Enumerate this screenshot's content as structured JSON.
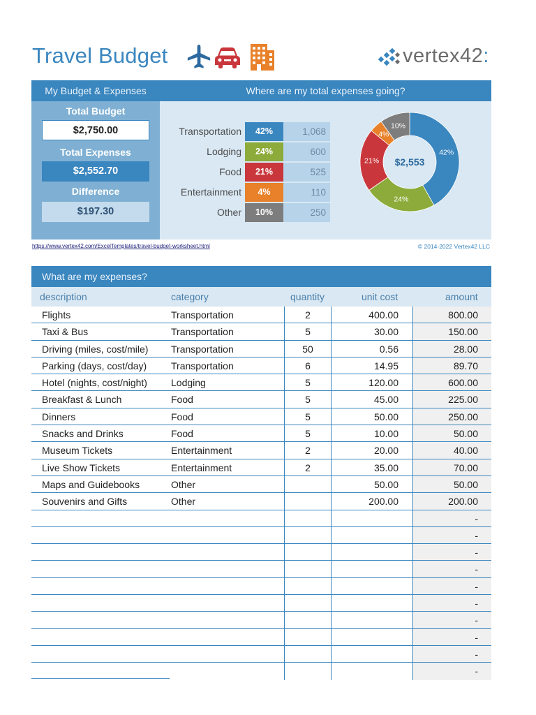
{
  "title": "Travel Budget",
  "icons": [
    "plane-icon",
    "car-icon",
    "hotel-icon"
  ],
  "logo": {
    "text": "vertex42",
    "colon": ":"
  },
  "summary": {
    "header": "My Budget & Expenses",
    "total_budget_label": "Total Budget",
    "total_budget": "$2,750.00",
    "total_expenses_label": "Total Expenses",
    "total_expenses": "$2,552.70",
    "difference_label": "Difference",
    "difference": "$197.30"
  },
  "breakdown": {
    "header": "Where are my total expenses going?",
    "categories": [
      {
        "name": "Transportation",
        "pct": "42%",
        "value": "1,068",
        "color": "#3a86bf"
      },
      {
        "name": "Lodging",
        "pct": "24%",
        "value": "600",
        "color": "#8cab3a"
      },
      {
        "name": "Food",
        "pct": "21%",
        "value": "525",
        "color": "#c9373c"
      },
      {
        "name": "Entertainment",
        "pct": "4%",
        "value": "110",
        "color": "#e8812a"
      },
      {
        "name": "Other",
        "pct": "10%",
        "value": "250",
        "color": "#7d7d7d"
      }
    ],
    "donut_center": "$2,553"
  },
  "link": "https://www.vertex42.com/ExcelTemplates/travel-budget-worksheet.html",
  "copyright": "© 2014-2022 Vertex42 LLC",
  "expenses": {
    "header": "What are my expenses?",
    "columns": {
      "description": "description",
      "category": "category",
      "quantity": "quantity",
      "unit_cost": "unit cost",
      "amount": "amount"
    },
    "rows": [
      {
        "description": "Flights",
        "category": "Transportation",
        "quantity": "2",
        "unit_cost": "400.00",
        "amount": "800.00"
      },
      {
        "description": "Taxi & Bus",
        "category": "Transportation",
        "quantity": "5",
        "unit_cost": "30.00",
        "amount": "150.00"
      },
      {
        "description": "Driving (miles, cost/mile)",
        "category": "Transportation",
        "quantity": "50",
        "unit_cost": "0.56",
        "amount": "28.00"
      },
      {
        "description": "Parking (days, cost/day)",
        "category": "Transportation",
        "quantity": "6",
        "unit_cost": "14.95",
        "amount": "89.70"
      },
      {
        "description": "Hotel (nights, cost/night)",
        "category": "Lodging",
        "quantity": "5",
        "unit_cost": "120.00",
        "amount": "600.00"
      },
      {
        "description": "Breakfast & Lunch",
        "category": "Food",
        "quantity": "5",
        "unit_cost": "45.00",
        "amount": "225.00"
      },
      {
        "description": "Dinners",
        "category": "Food",
        "quantity": "5",
        "unit_cost": "50.00",
        "amount": "250.00"
      },
      {
        "description": "Snacks and Drinks",
        "category": "Food",
        "quantity": "5",
        "unit_cost": "10.00",
        "amount": "50.00"
      },
      {
        "description": "Museum Tickets",
        "category": "Entertainment",
        "quantity": "2",
        "unit_cost": "20.00",
        "amount": "40.00"
      },
      {
        "description": "Live Show Tickets",
        "category": "Entertainment",
        "quantity": "2",
        "unit_cost": "35.00",
        "amount": "70.00"
      },
      {
        "description": "Maps and Guidebooks",
        "category": "Other",
        "quantity": "",
        "unit_cost": "50.00",
        "amount": "50.00"
      },
      {
        "description": "Souvenirs and Gifts",
        "category": "Other",
        "quantity": "",
        "unit_cost": "200.00",
        "amount": "200.00"
      },
      {
        "description": "",
        "category": "",
        "quantity": "",
        "unit_cost": "",
        "amount": "-"
      },
      {
        "description": "",
        "category": "",
        "quantity": "",
        "unit_cost": "",
        "amount": "-"
      },
      {
        "description": "",
        "category": "",
        "quantity": "",
        "unit_cost": "",
        "amount": "-"
      },
      {
        "description": "",
        "category": "",
        "quantity": "",
        "unit_cost": "",
        "amount": "-"
      },
      {
        "description": "",
        "category": "",
        "quantity": "",
        "unit_cost": "",
        "amount": "-"
      },
      {
        "description": "",
        "category": "",
        "quantity": "",
        "unit_cost": "",
        "amount": "-"
      },
      {
        "description": "",
        "category": "",
        "quantity": "",
        "unit_cost": "",
        "amount": "-"
      },
      {
        "description": "",
        "category": "",
        "quantity": "",
        "unit_cost": "",
        "amount": "-"
      },
      {
        "description": "",
        "category": "",
        "quantity": "",
        "unit_cost": "",
        "amount": "-"
      },
      {
        "description": "",
        "category": "",
        "quantity": "",
        "unit_cost": "",
        "amount": "-"
      }
    ]
  }
}
